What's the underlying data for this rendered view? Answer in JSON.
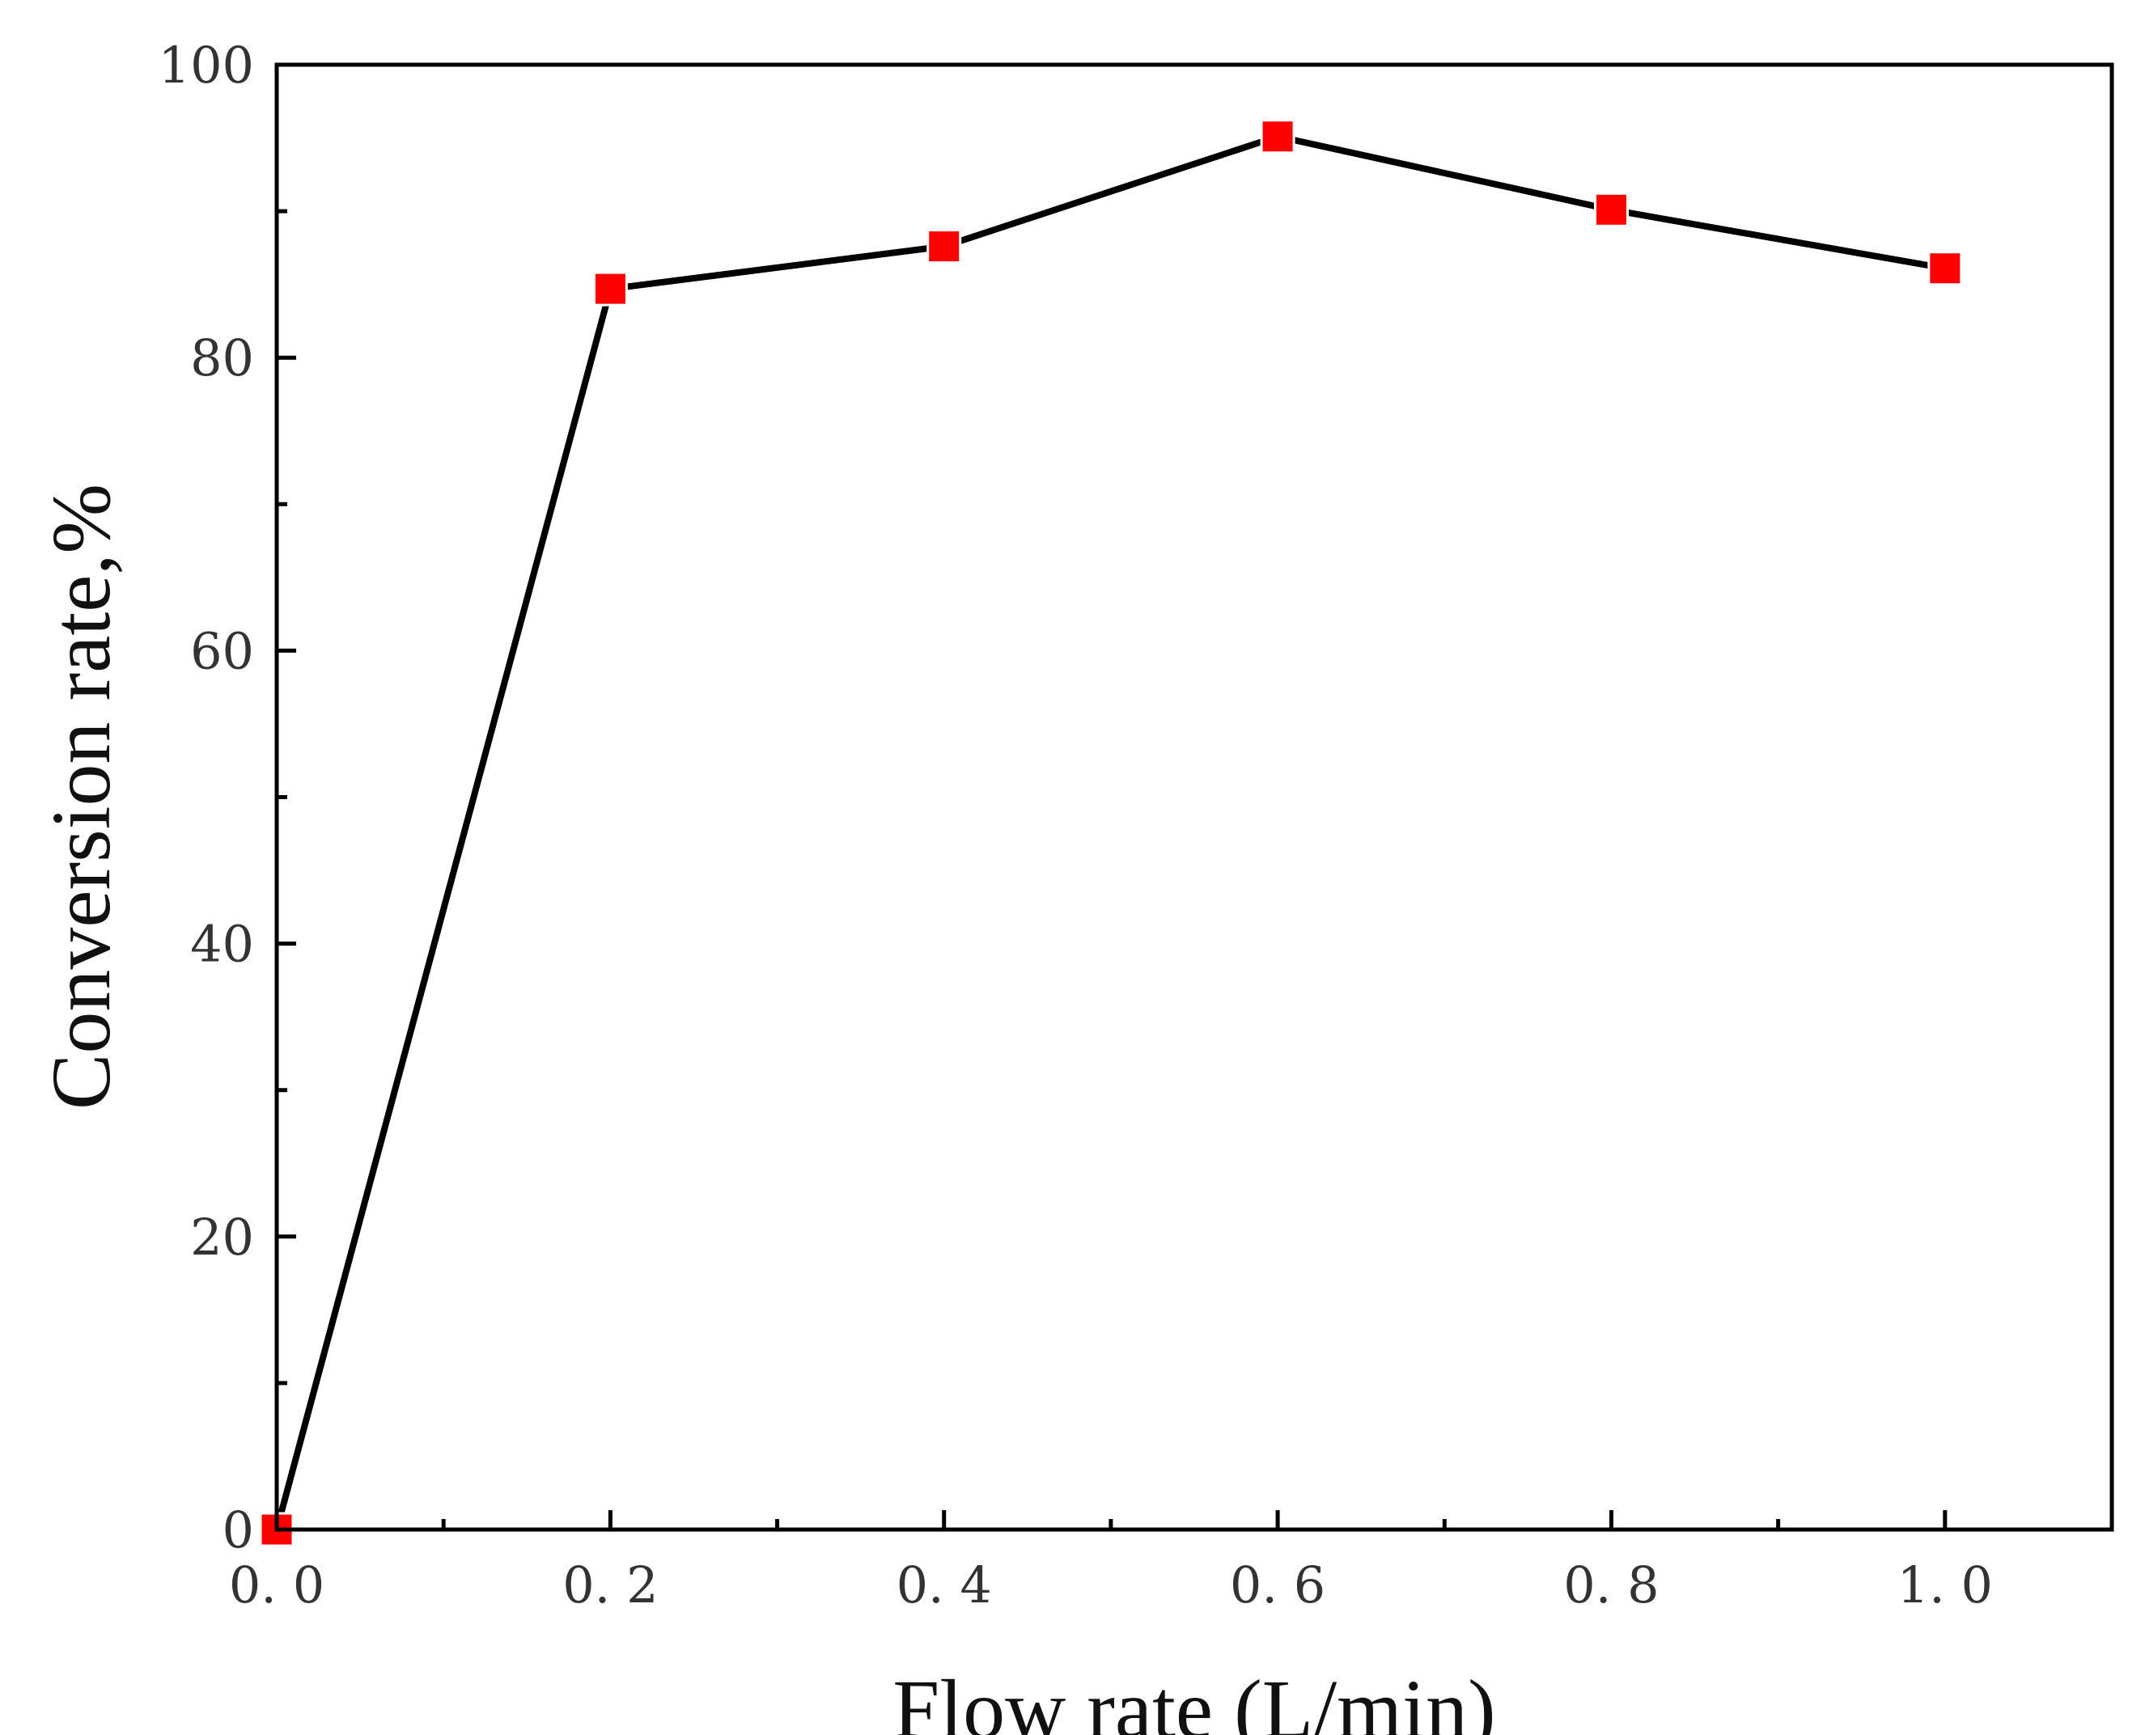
{
  "chart_data": {
    "type": "line",
    "title": "",
    "xlabel": "Flow rate (L/min)",
    "ylabel": "Conversion rate,%",
    "xlim": [
      0.0,
      1.1
    ],
    "ylim": [
      0,
      100
    ],
    "x_ticks": [
      {
        "value": 0.0,
        "label": "0. 0"
      },
      {
        "value": 0.2,
        "label": "0. 2"
      },
      {
        "value": 0.4,
        "label": "0. 4"
      },
      {
        "value": 0.6,
        "label": "0. 6"
      },
      {
        "value": 0.8,
        "label": "0. 8"
      },
      {
        "value": 1.0,
        "label": "1. 0"
      }
    ],
    "x_minor_ticks": [
      0.1,
      0.3,
      0.5,
      0.7,
      0.9
    ],
    "y_ticks": [
      {
        "value": 0,
        "label": "0"
      },
      {
        "value": 20,
        "label": "20"
      },
      {
        "value": 40,
        "label": "40"
      },
      {
        "value": 60,
        "label": "60"
      },
      {
        "value": 80,
        "label": "80"
      },
      {
        "value": 100,
        "label": "100"
      }
    ],
    "y_minor_ticks": [
      10,
      30,
      50,
      70,
      90
    ],
    "grid": false,
    "legend": "none",
    "series": [
      {
        "name": "Conversion rate",
        "x": [
          0.0,
          0.2,
          0.4,
          0.6,
          0.8,
          1.0
        ],
        "values": [
          0,
          84.7,
          87.6,
          95.1,
          90.1,
          86.1
        ],
        "line_color": "#000000",
        "marker": "square",
        "marker_color": "#ff0000"
      }
    ]
  }
}
